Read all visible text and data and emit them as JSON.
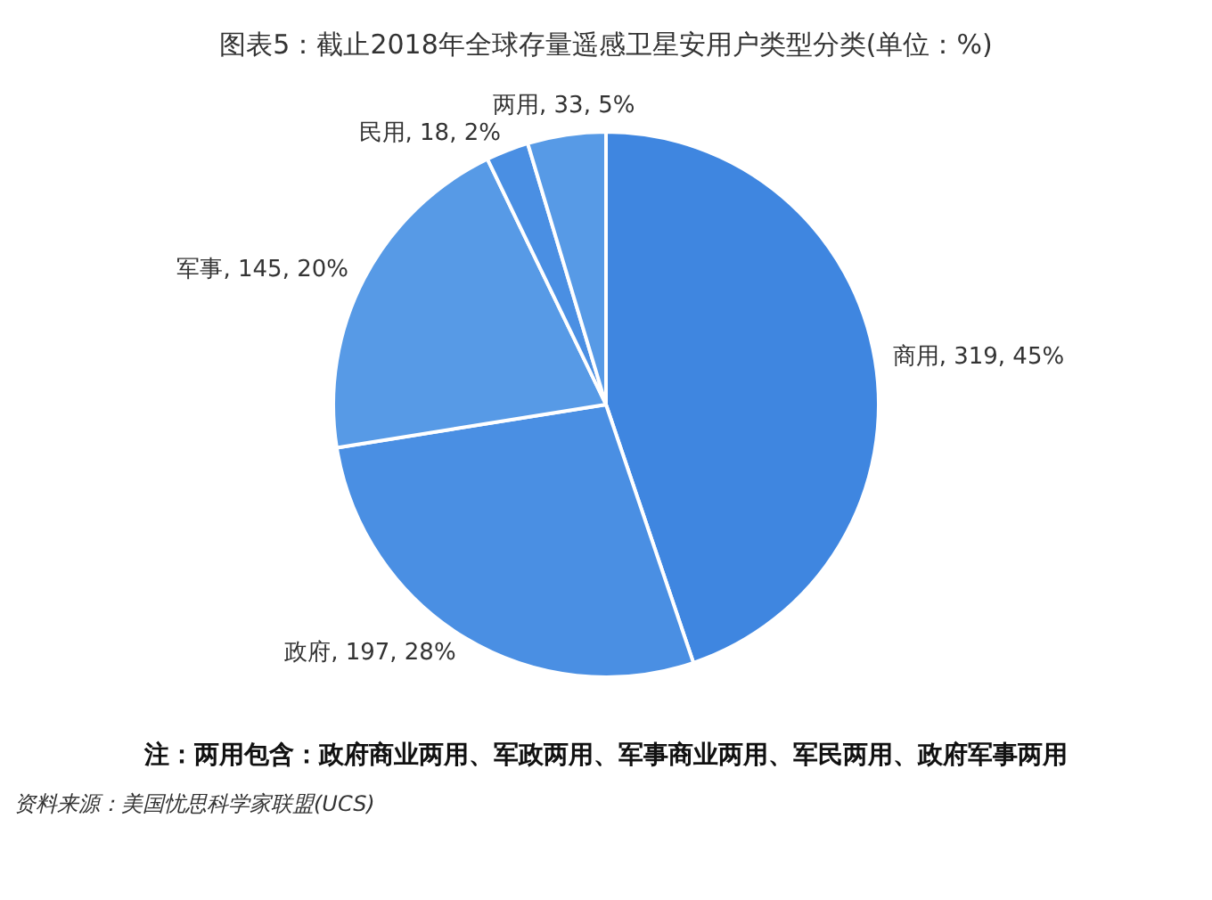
{
  "chart_data": {
    "type": "pie",
    "title": "图表5：截止2018年全球存量遥感卫星安用户类型分类(单位：%)",
    "categories": [
      "商用",
      "政府",
      "军事",
      "民用",
      "两用"
    ],
    "values": [
      319,
      197,
      145,
      18,
      33
    ],
    "value_labels": [
      "319, 45%",
      "197, 28%",
      "145, 20%",
      "18, 2%",
      "33, 5%"
    ],
    "colors": [
      "#3f86e0",
      "#4a8fe3",
      "#579ae6",
      "#4a8fe3",
      "#579ae6"
    ],
    "legend": false,
    "annotations": [
      "注：两用包含：政府商业两用、军政两用、军事商业两用、军民两用、政府军事两用",
      "资料来源：美国忧思科学家联盟(UCS)"
    ]
  }
}
